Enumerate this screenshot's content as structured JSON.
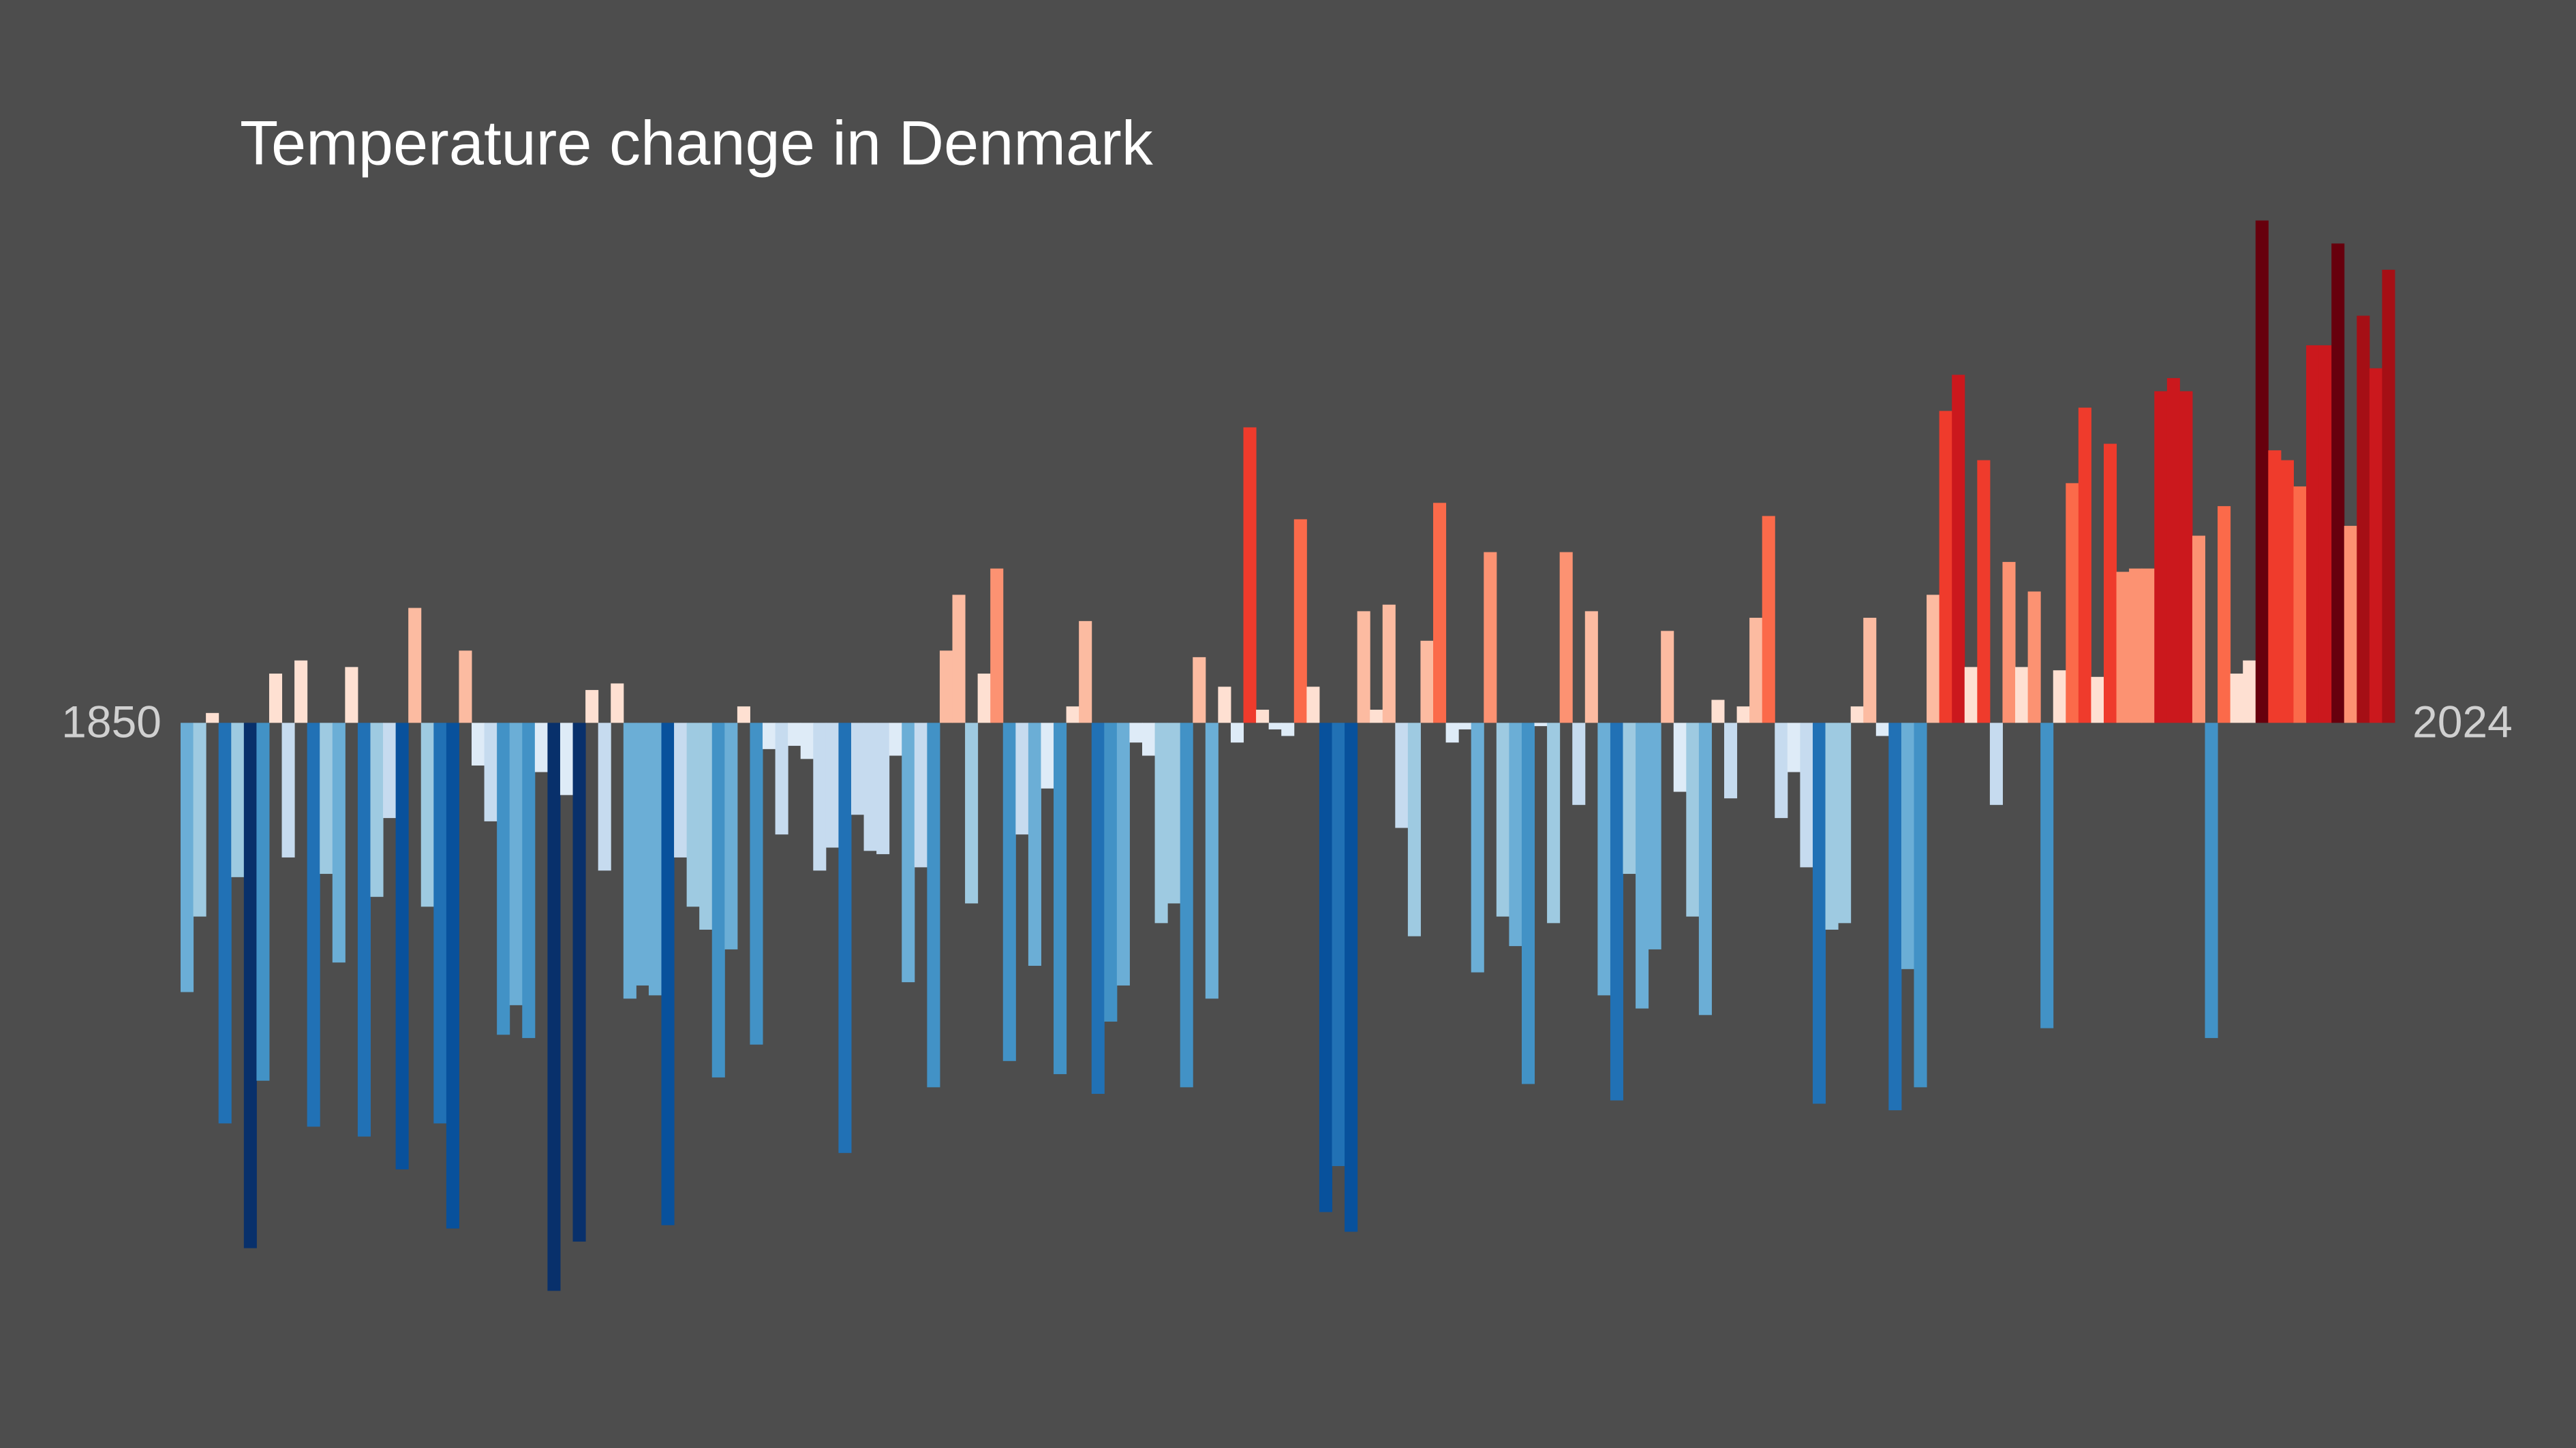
{
  "chart_data": {
    "type": "bar",
    "title": "Temperature change in Denmark",
    "categories": [
      "1850",
      null,
      null,
      null,
      null,
      null,
      null,
      null,
      null,
      null,
      null,
      null,
      null,
      null,
      null,
      null,
      null,
      null,
      null,
      null,
      null,
      null,
      null,
      null,
      null,
      null,
      null,
      null,
      null,
      null,
      null,
      null,
      null,
      null,
      null,
      null,
      null,
      null,
      null,
      null,
      null,
      null,
      null,
      null,
      null,
      null,
      null,
      null,
      null,
      null,
      null,
      null,
      null,
      null,
      null,
      null,
      null,
      null,
      null,
      null,
      null,
      null,
      null,
      null,
      null,
      null,
      null,
      null,
      null,
      null,
      null,
      null,
      null,
      null,
      null,
      null,
      null,
      null,
      null,
      null,
      null,
      null,
      null,
      null,
      null,
      null,
      null,
      null,
      null,
      null,
      null,
      null,
      null,
      null,
      null,
      null,
      null,
      null,
      null,
      null,
      null,
      null,
      null,
      null,
      null,
      null,
      null,
      null,
      null,
      null,
      null,
      null,
      null,
      null,
      null,
      null,
      null,
      null,
      null,
      null,
      null,
      null,
      null,
      null,
      null,
      null,
      null,
      null,
      null,
      null,
      null,
      null,
      null,
      null,
      null,
      null,
      null,
      null,
      null,
      null,
      null,
      null,
      null,
      null,
      null,
      null,
      null,
      null,
      null,
      null,
      null,
      null,
      null,
      null,
      null,
      null,
      null,
      null,
      null,
      null,
      null,
      null,
      null,
      null,
      null,
      null,
      null,
      null,
      null,
      null,
      null,
      null,
      null,
      null,
      "2024"
    ],
    "values": [
      -0.82,
      -0.59,
      0.03,
      -1.22,
      -0.47,
      -1.6,
      -1.09,
      0.15,
      -0.41,
      0.19,
      -1.23,
      -0.46,
      -0.73,
      0.17,
      -1.26,
      -0.53,
      -0.29,
      -1.36,
      0.35,
      -0.56,
      -1.22,
      -1.54,
      0.22,
      -0.13,
      -0.3,
      -0.95,
      -0.86,
      -0.96,
      -0.15,
      -1.73,
      -0.22,
      -1.58,
      0.1,
      -0.45,
      0.12,
      -0.84,
      -0.8,
      -0.83,
      -1.53,
      -0.41,
      -0.56,
      -0.63,
      -1.08,
      -0.69,
      0.05,
      -0.98,
      -0.08,
      -0.34,
      -0.07,
      -0.11,
      -0.45,
      -0.38,
      -1.31,
      -0.28,
      -0.39,
      -0.4,
      -0.1,
      -0.79,
      -0.44,
      -1.11,
      0.22,
      0.39,
      -0.55,
      0.15,
      0.47,
      -1.03,
      -0.34,
      -0.74,
      -0.2,
      -1.07,
      0.05,
      0.31,
      -1.13,
      -0.91,
      -0.8,
      -0.06,
      -0.1,
      -0.61,
      -0.55,
      -1.11,
      0.2,
      -0.84,
      0.11,
      -0.06,
      0.9,
      0.04,
      -0.02,
      -0.04,
      0.62,
      0.11,
      -1.49,
      -1.35,
      -1.55,
      0.34,
      0.04,
      0.36,
      -0.32,
      -0.65,
      0.25,
      0.67,
      -0.06,
      -0.02,
      -0.76,
      0.52,
      -0.59,
      -0.68,
      -1.1,
      -0.01,
      -0.61,
      0.52,
      -0.25,
      0.34,
      -0.83,
      -1.15,
      -0.46,
      -0.87,
      -0.69,
      0.28,
      -0.21,
      -0.59,
      -0.89,
      0.07,
      -0.23,
      0.05,
      0.32,
      0.63,
      -0.29,
      -0.15,
      -0.44,
      -1.16,
      -0.63,
      -0.61,
      0.05,
      0.32,
      -0.04,
      -1.18,
      -0.75,
      -1.11,
      0.39,
      0.95,
      1.06,
      0.17,
      0.8,
      -0.25,
      0.49,
      0.17,
      0.4,
      -0.93,
      0.16,
      0.73,
      0.96,
      0.14,
      0.85,
      0.46,
      0.47,
      0.47,
      1.01,
      1.05,
      1.01,
      0.57,
      -0.96,
      0.66,
      0.15,
      0.19,
      1.53,
      0.83,
      0.8,
      0.72,
      1.15,
      1.15,
      1.46,
      0.6,
      1.24,
      1.08,
      1.38
    ],
    "colors": [
      "#08306b",
      "#08519c",
      "#2171b5",
      "#4292c6",
      "#6baed6",
      "#9ecae1",
      "#c6dbef",
      "#deebf7",
      "#fee0d2",
      "#fcbba1",
      "#fc9272",
      "#fb6a4a",
      "#ef3b2c",
      "#cb181d",
      "#a50f15",
      "#67000d"
    ],
    "ylim": [
      -1.8,
      1.6
    ],
    "background": "#4d4d4d"
  }
}
